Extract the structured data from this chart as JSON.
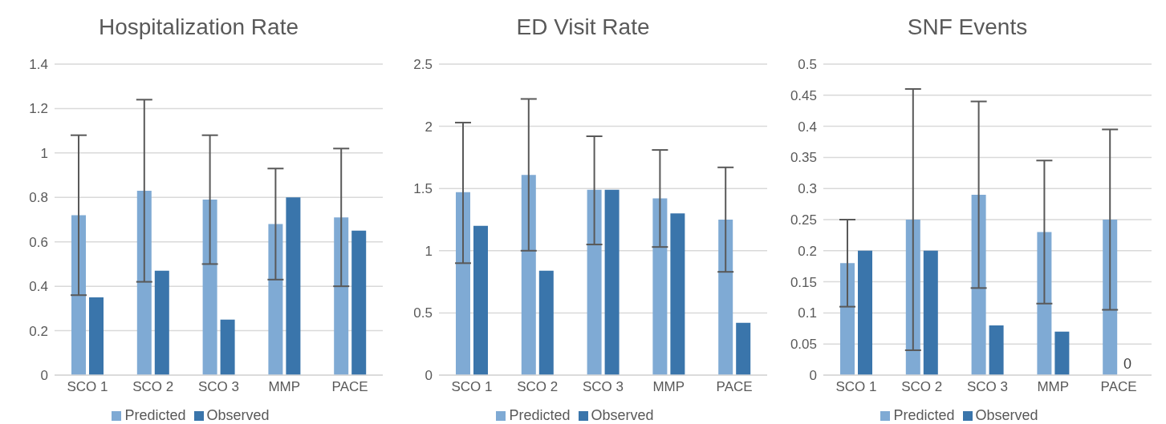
{
  "chart_data": [
    {
      "type": "bar",
      "title": "Hospitalization Rate",
      "categories": [
        "SCO 1",
        "SCO 2",
        "SCO 3",
        "MMP",
        "PACE"
      ],
      "series": [
        {
          "name": "Predicted",
          "color": "#7faad4",
          "values": [
            0.72,
            0.83,
            0.79,
            0.68,
            0.71
          ],
          "errors": [
            [
              0.36,
              1.08
            ],
            [
              0.42,
              1.24
            ],
            [
              0.5,
              1.08
            ],
            [
              0.43,
              0.93
            ],
            [
              0.4,
              1.02
            ]
          ]
        },
        {
          "name": "Observed",
          "color": "#3a75ab",
          "values": [
            0.35,
            0.47,
            0.25,
            0.8,
            0.65
          ]
        }
      ],
      "ylim": [
        0,
        1.4
      ],
      "yticks": [
        0,
        0.2,
        0.4,
        0.6,
        0.8,
        1,
        1.2,
        1.4
      ],
      "grid": "y",
      "legend": "bottom"
    },
    {
      "type": "bar",
      "title": "ED Visit Rate",
      "categories": [
        "SCO 1",
        "SCO 2",
        "SCO 3",
        "MMP",
        "PACE"
      ],
      "series": [
        {
          "name": "Predicted",
          "color": "#7faad4",
          "values": [
            1.47,
            1.61,
            1.49,
            1.42,
            1.25
          ],
          "errors": [
            [
              0.9,
              2.03
            ],
            [
              1.0,
              2.22
            ],
            [
              1.05,
              1.92
            ],
            [
              1.03,
              1.81
            ],
            [
              0.83,
              1.67
            ]
          ]
        },
        {
          "name": "Observed",
          "color": "#3a75ab",
          "values": [
            1.2,
            0.84,
            1.49,
            1.3,
            0.42
          ]
        }
      ],
      "ylim": [
        0,
        2.5
      ],
      "yticks": [
        0,
        0.5,
        1,
        1.5,
        2,
        2.5
      ],
      "grid": "y",
      "legend": "bottom"
    },
    {
      "type": "bar",
      "title": "SNF Events",
      "categories": [
        "SCO 1",
        "SCO 2",
        "SCO 3",
        "MMP",
        "PACE"
      ],
      "series": [
        {
          "name": "Predicted",
          "color": "#7faad4",
          "values": [
            0.18,
            0.25,
            0.29,
            0.23,
            0.25
          ],
          "errors": [
            [
              0.11,
              0.25
            ],
            [
              0.04,
              0.46
            ],
            [
              0.14,
              0.44
            ],
            [
              0.115,
              0.345
            ],
            [
              0.105,
              0.395
            ]
          ]
        },
        {
          "name": "Observed",
          "color": "#3a75ab",
          "values": [
            0.2,
            0.2,
            0.08,
            0.07,
            0
          ],
          "value_labels": [
            null,
            null,
            null,
            null,
            "0"
          ]
        }
      ],
      "ylim": [
        0,
        0.5
      ],
      "yticks": [
        0,
        0.05,
        0.1,
        0.15,
        0.2,
        0.25,
        0.3,
        0.35,
        0.4,
        0.45,
        0.5
      ],
      "grid": "y",
      "legend": "bottom"
    }
  ]
}
